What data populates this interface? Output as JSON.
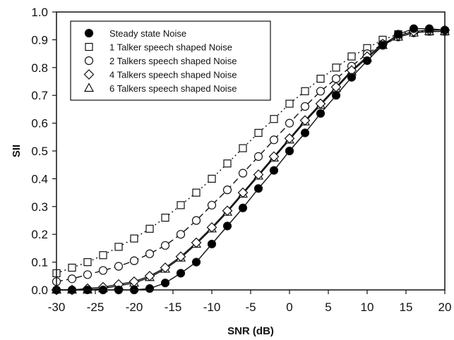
{
  "chart_data": {
    "type": "line",
    "title": "",
    "xlabel": "SNR (dB)",
    "ylabel": "SII",
    "xlim": [
      -30,
      20
    ],
    "ylim": [
      0,
      1
    ],
    "x_ticks": [
      "-30",
      "-25",
      "-20",
      "-15",
      "-10",
      "-5",
      "0",
      "5",
      "10",
      "15",
      "20"
    ],
    "y_ticks": [
      "0.0",
      "0.1",
      "0.2",
      "0.3",
      "0.4",
      "0.5",
      "0.6",
      "0.7",
      "0.8",
      "0.9",
      "1.0"
    ],
    "grid": false,
    "legend_position": "top-left",
    "x": [
      -30,
      -28,
      -26,
      -24,
      -22,
      -20,
      -18,
      -16,
      -14,
      -12,
      -10,
      -8,
      -6,
      -4,
      -2,
      0,
      2,
      4,
      6,
      8,
      10,
      12,
      14,
      16,
      18,
      20
    ],
    "series": [
      {
        "name": "Steady state Noise",
        "marker": "filled-circle",
        "line": "solid",
        "values": [
          0.0,
          0.0,
          0.0,
          0.0,
          0.0,
          0.0,
          0.005,
          0.025,
          0.06,
          0.1,
          0.165,
          0.23,
          0.295,
          0.365,
          0.43,
          0.5,
          0.565,
          0.635,
          0.7,
          0.765,
          0.825,
          0.88,
          0.92,
          0.94,
          0.94,
          0.935
        ]
      },
      {
        "name": "1 Talker speech shaped Noise",
        "marker": "open-square",
        "line": "dotted",
        "values": [
          0.06,
          0.08,
          0.1,
          0.125,
          0.155,
          0.185,
          0.22,
          0.26,
          0.305,
          0.35,
          0.4,
          0.455,
          0.51,
          0.565,
          0.615,
          0.67,
          0.715,
          0.76,
          0.8,
          0.84,
          0.87,
          0.9,
          0.92,
          0.93,
          0.93,
          0.93
        ]
      },
      {
        "name": "2 Talkers speech shaped Noise",
        "marker": "open-circle",
        "line": "dashed",
        "values": [
          0.03,
          0.04,
          0.055,
          0.07,
          0.085,
          0.105,
          0.13,
          0.16,
          0.2,
          0.25,
          0.305,
          0.36,
          0.42,
          0.48,
          0.54,
          0.6,
          0.66,
          0.715,
          0.76,
          0.805,
          0.85,
          0.885,
          0.91,
          0.925,
          0.93,
          0.93
        ]
      },
      {
        "name": "4 Talkers speech shaped Noise",
        "marker": "open-diamond",
        "line": "solid",
        "values": [
          0.0,
          0.0,
          0.005,
          0.01,
          0.02,
          0.03,
          0.05,
          0.08,
          0.12,
          0.17,
          0.225,
          0.285,
          0.35,
          0.415,
          0.48,
          0.545,
          0.61,
          0.67,
          0.73,
          0.79,
          0.84,
          0.885,
          0.915,
          0.93,
          0.935,
          0.935
        ]
      },
      {
        "name": "6 Talkers speech shaped Noise",
        "marker": "open-triangle",
        "line": "solid",
        "values": [
          0.0,
          0.0,
          0.0,
          0.005,
          0.015,
          0.025,
          0.045,
          0.075,
          0.115,
          0.165,
          0.22,
          0.28,
          0.345,
          0.41,
          0.475,
          0.54,
          0.605,
          0.665,
          0.725,
          0.785,
          0.835,
          0.88,
          0.91,
          0.925,
          0.93,
          0.93
        ]
      }
    ]
  }
}
